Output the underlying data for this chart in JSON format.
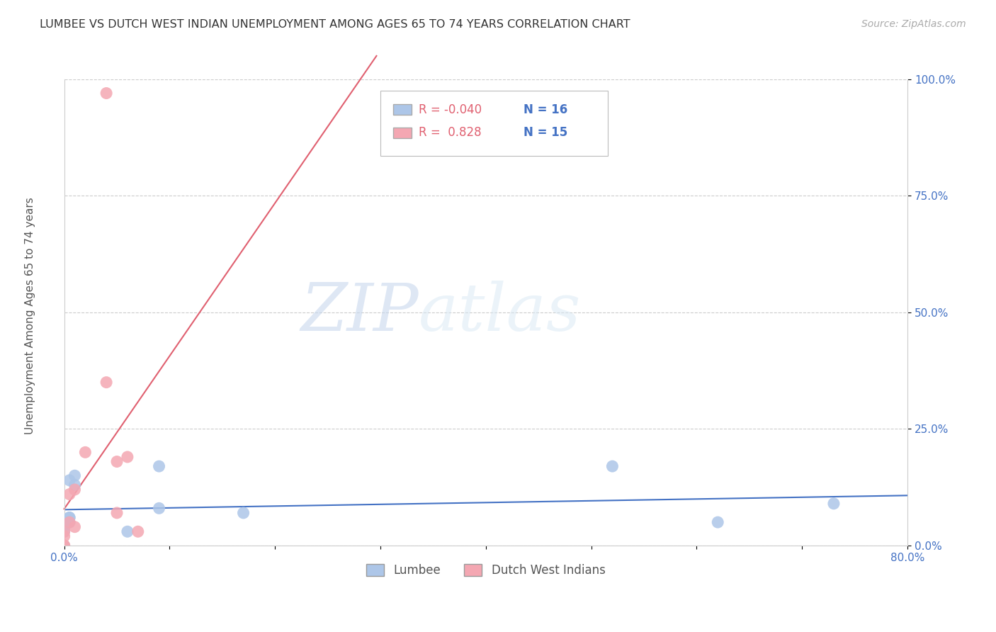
{
  "title": "LUMBEE VS DUTCH WEST INDIAN UNEMPLOYMENT AMONG AGES 65 TO 74 YEARS CORRELATION CHART",
  "source": "Source: ZipAtlas.com",
  "ylabel": "Unemployment Among Ages 65 to 74 years",
  "xlim": [
    0.0,
    0.8
  ],
  "ylim": [
    0.0,
    1.0
  ],
  "xticks": [
    0.0,
    0.1,
    0.2,
    0.3,
    0.4,
    0.5,
    0.6,
    0.7,
    0.8
  ],
  "xticklabels": [
    "0.0%",
    "",
    "",
    "",
    "",
    "",
    "",
    "",
    "80.0%"
  ],
  "yticks": [
    0.0,
    0.25,
    0.5,
    0.75,
    1.0
  ],
  "yticklabels": [
    "0.0%",
    "25.0%",
    "50.0%",
    "75.0%",
    "100.0%"
  ],
  "lumbee_R": "-0.040",
  "lumbee_N": "16",
  "dutch_R": "0.828",
  "dutch_N": "15",
  "lumbee_color": "#adc6e8",
  "dutch_color": "#f4a7b2",
  "lumbee_line_color": "#4472c4",
  "dutch_line_color": "#e06070",
  "watermark_zip": "ZIP",
  "watermark_atlas": "atlas",
  "lumbee_x": [
    0.0,
    0.0,
    0.0,
    0.005,
    0.005,
    0.005,
    0.005,
    0.01,
    0.01,
    0.06,
    0.09,
    0.09,
    0.17,
    0.52,
    0.62,
    0.73
  ],
  "lumbee_y": [
    0.0,
    0.03,
    0.04,
    0.05,
    0.06,
    0.06,
    0.14,
    0.13,
    0.15,
    0.03,
    0.08,
    0.17,
    0.07,
    0.17,
    0.05,
    0.09
  ],
  "dutch_x": [
    0.0,
    0.0,
    0.0,
    0.0,
    0.005,
    0.005,
    0.01,
    0.01,
    0.02,
    0.04,
    0.04,
    0.05,
    0.05,
    0.06,
    0.07
  ],
  "dutch_y": [
    0.0,
    0.0,
    0.02,
    0.03,
    0.05,
    0.11,
    0.04,
    0.12,
    0.2,
    0.35,
    0.97,
    0.07,
    0.18,
    0.19,
    0.03
  ],
  "legend_R_color": "#e06070",
  "legend_N_color": "#4472c4",
  "tick_color": "#4472c4",
  "grid_color": "#cccccc",
  "ylabel_color": "#555555",
  "title_color": "#333333",
  "source_color": "#aaaaaa"
}
